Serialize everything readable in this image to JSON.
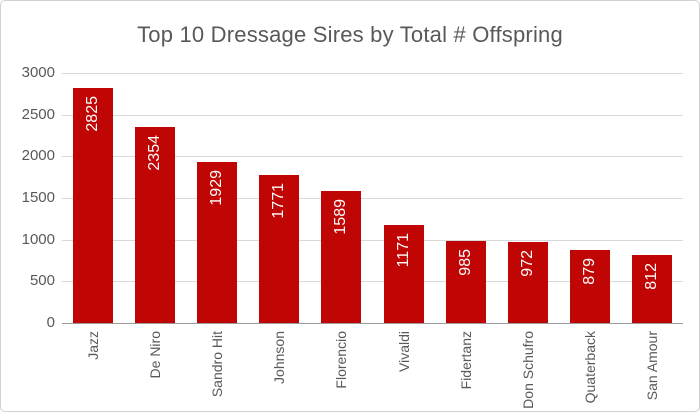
{
  "title": "Top 10 Dressage Sires by Total # Offspring",
  "colors": {
    "bar": "#C00505",
    "gridline": "#D9D9D9",
    "axis_line": "#9B9B9B",
    "tick_text": "#595959",
    "title_text": "#595959",
    "data_label_text": "#FFFFFF",
    "border": "#D2D2D2",
    "background": "#FFFFFF"
  },
  "chart_data": {
    "type": "bar",
    "title": "Top 10 Dressage Sires by Total # Offspring",
    "categories": [
      "Jazz",
      "De Niro",
      "Sandro Hit",
      "Johnson",
      "Florencio",
      "Vivaldi",
      "Fidertanz",
      "Don Schufro",
      "Quaterback",
      "San Amour"
    ],
    "values": [
      2825,
      2354,
      1929,
      1771,
      1589,
      1171,
      985,
      972,
      879,
      812
    ],
    "xlabel": "",
    "ylabel": "",
    "ylim": [
      0,
      3000
    ],
    "yticks": [
      0,
      500,
      1000,
      1500,
      2000,
      2500,
      3000
    ],
    "grid": true,
    "legend": false,
    "data_labels": "inside end, rotated 90° counterclockwise, white",
    "category_label_rotation": -90
  }
}
